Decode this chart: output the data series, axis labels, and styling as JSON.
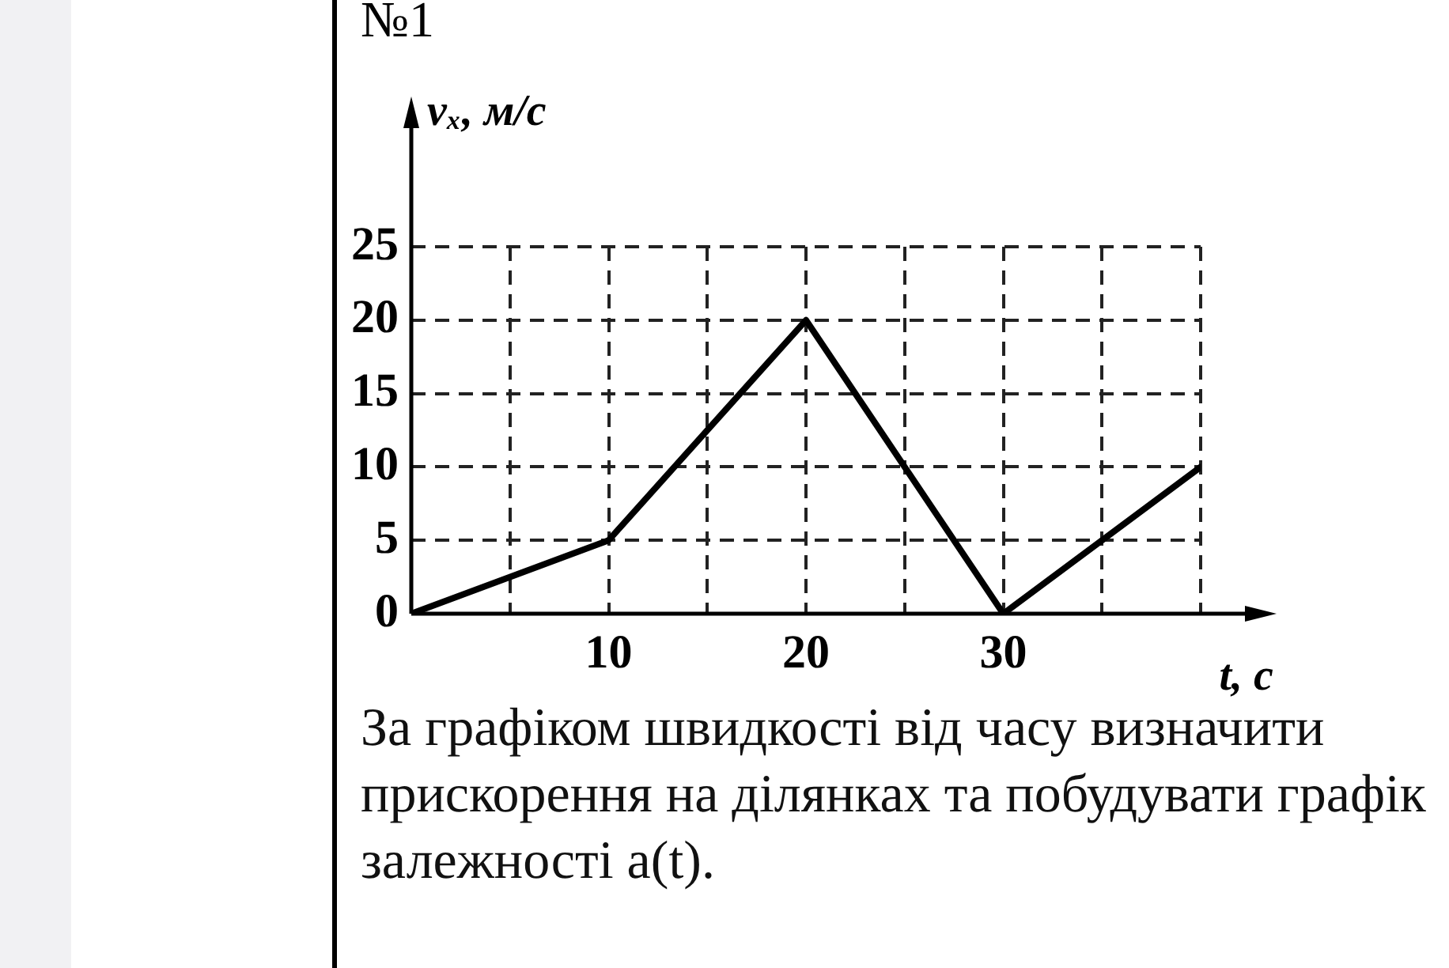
{
  "chart_data": {
    "type": "line",
    "title": "№1",
    "ylabel": "vₓ, м/с",
    "xlabel": "t, c",
    "x": [
      0,
      10,
      20,
      30,
      40
    ],
    "series": [
      {
        "color": "#000000",
        "values": [
          0,
          5,
          20,
          0,
          10
        ]
      }
    ],
    "xlim": [
      0,
      40
    ],
    "ylim": [
      0,
      25
    ],
    "xticks": [
      {
        "value": 5,
        "label": null
      },
      10,
      {
        "value": 15,
        "label": null
      },
      20,
      {
        "value": 25,
        "label": null
      },
      30,
      {
        "value": 35,
        "label": null
      },
      {
        "value": 40,
        "label": null
      }
    ],
    "yticks": [
      0,
      5,
      10,
      15,
      20,
      25
    ],
    "grid": true,
    "legend": false,
    "marker": "none",
    "line_style": "solid",
    "annotations": [
      "За графіком швидкості від часу визначити прискорення на ділянках та побудувати графік залежності a(t)."
    ]
  }
}
